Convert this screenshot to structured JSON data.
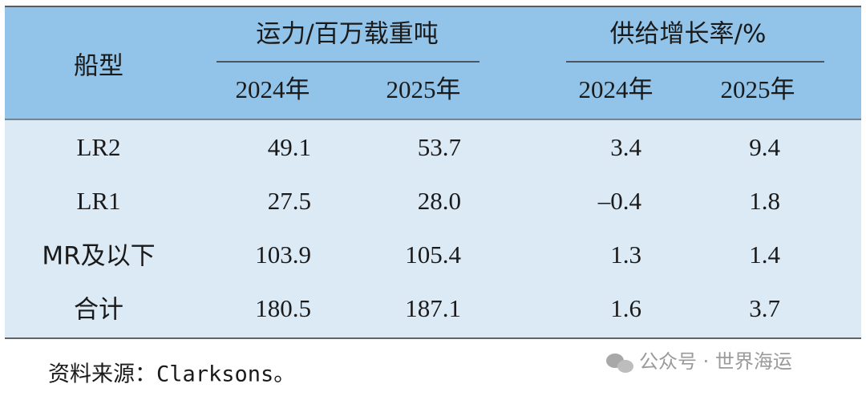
{
  "table": {
    "header": {
      "ship_type": "船型",
      "groups": [
        {
          "label": "运力/百万载重吨",
          "years": [
            "2024年",
            "2025年"
          ]
        },
        {
          "label": "供给增长率/%",
          "years": [
            "2024年",
            "2025年"
          ]
        }
      ]
    },
    "rows": [
      [
        "LR2",
        "49.1",
        "53.7",
        "3.4",
        "9.4"
      ],
      [
        "LR1",
        "27.5",
        "28.0",
        "–0.4",
        "1.8"
      ],
      [
        "MR及以下",
        "103.9",
        "105.4",
        "1.3",
        "1.4"
      ],
      [
        "合计",
        "180.5",
        "187.1",
        "1.6",
        "3.7"
      ]
    ]
  },
  "source": "资料来源：Clarksons。",
  "watermark": "公众号 · 世界海运"
}
